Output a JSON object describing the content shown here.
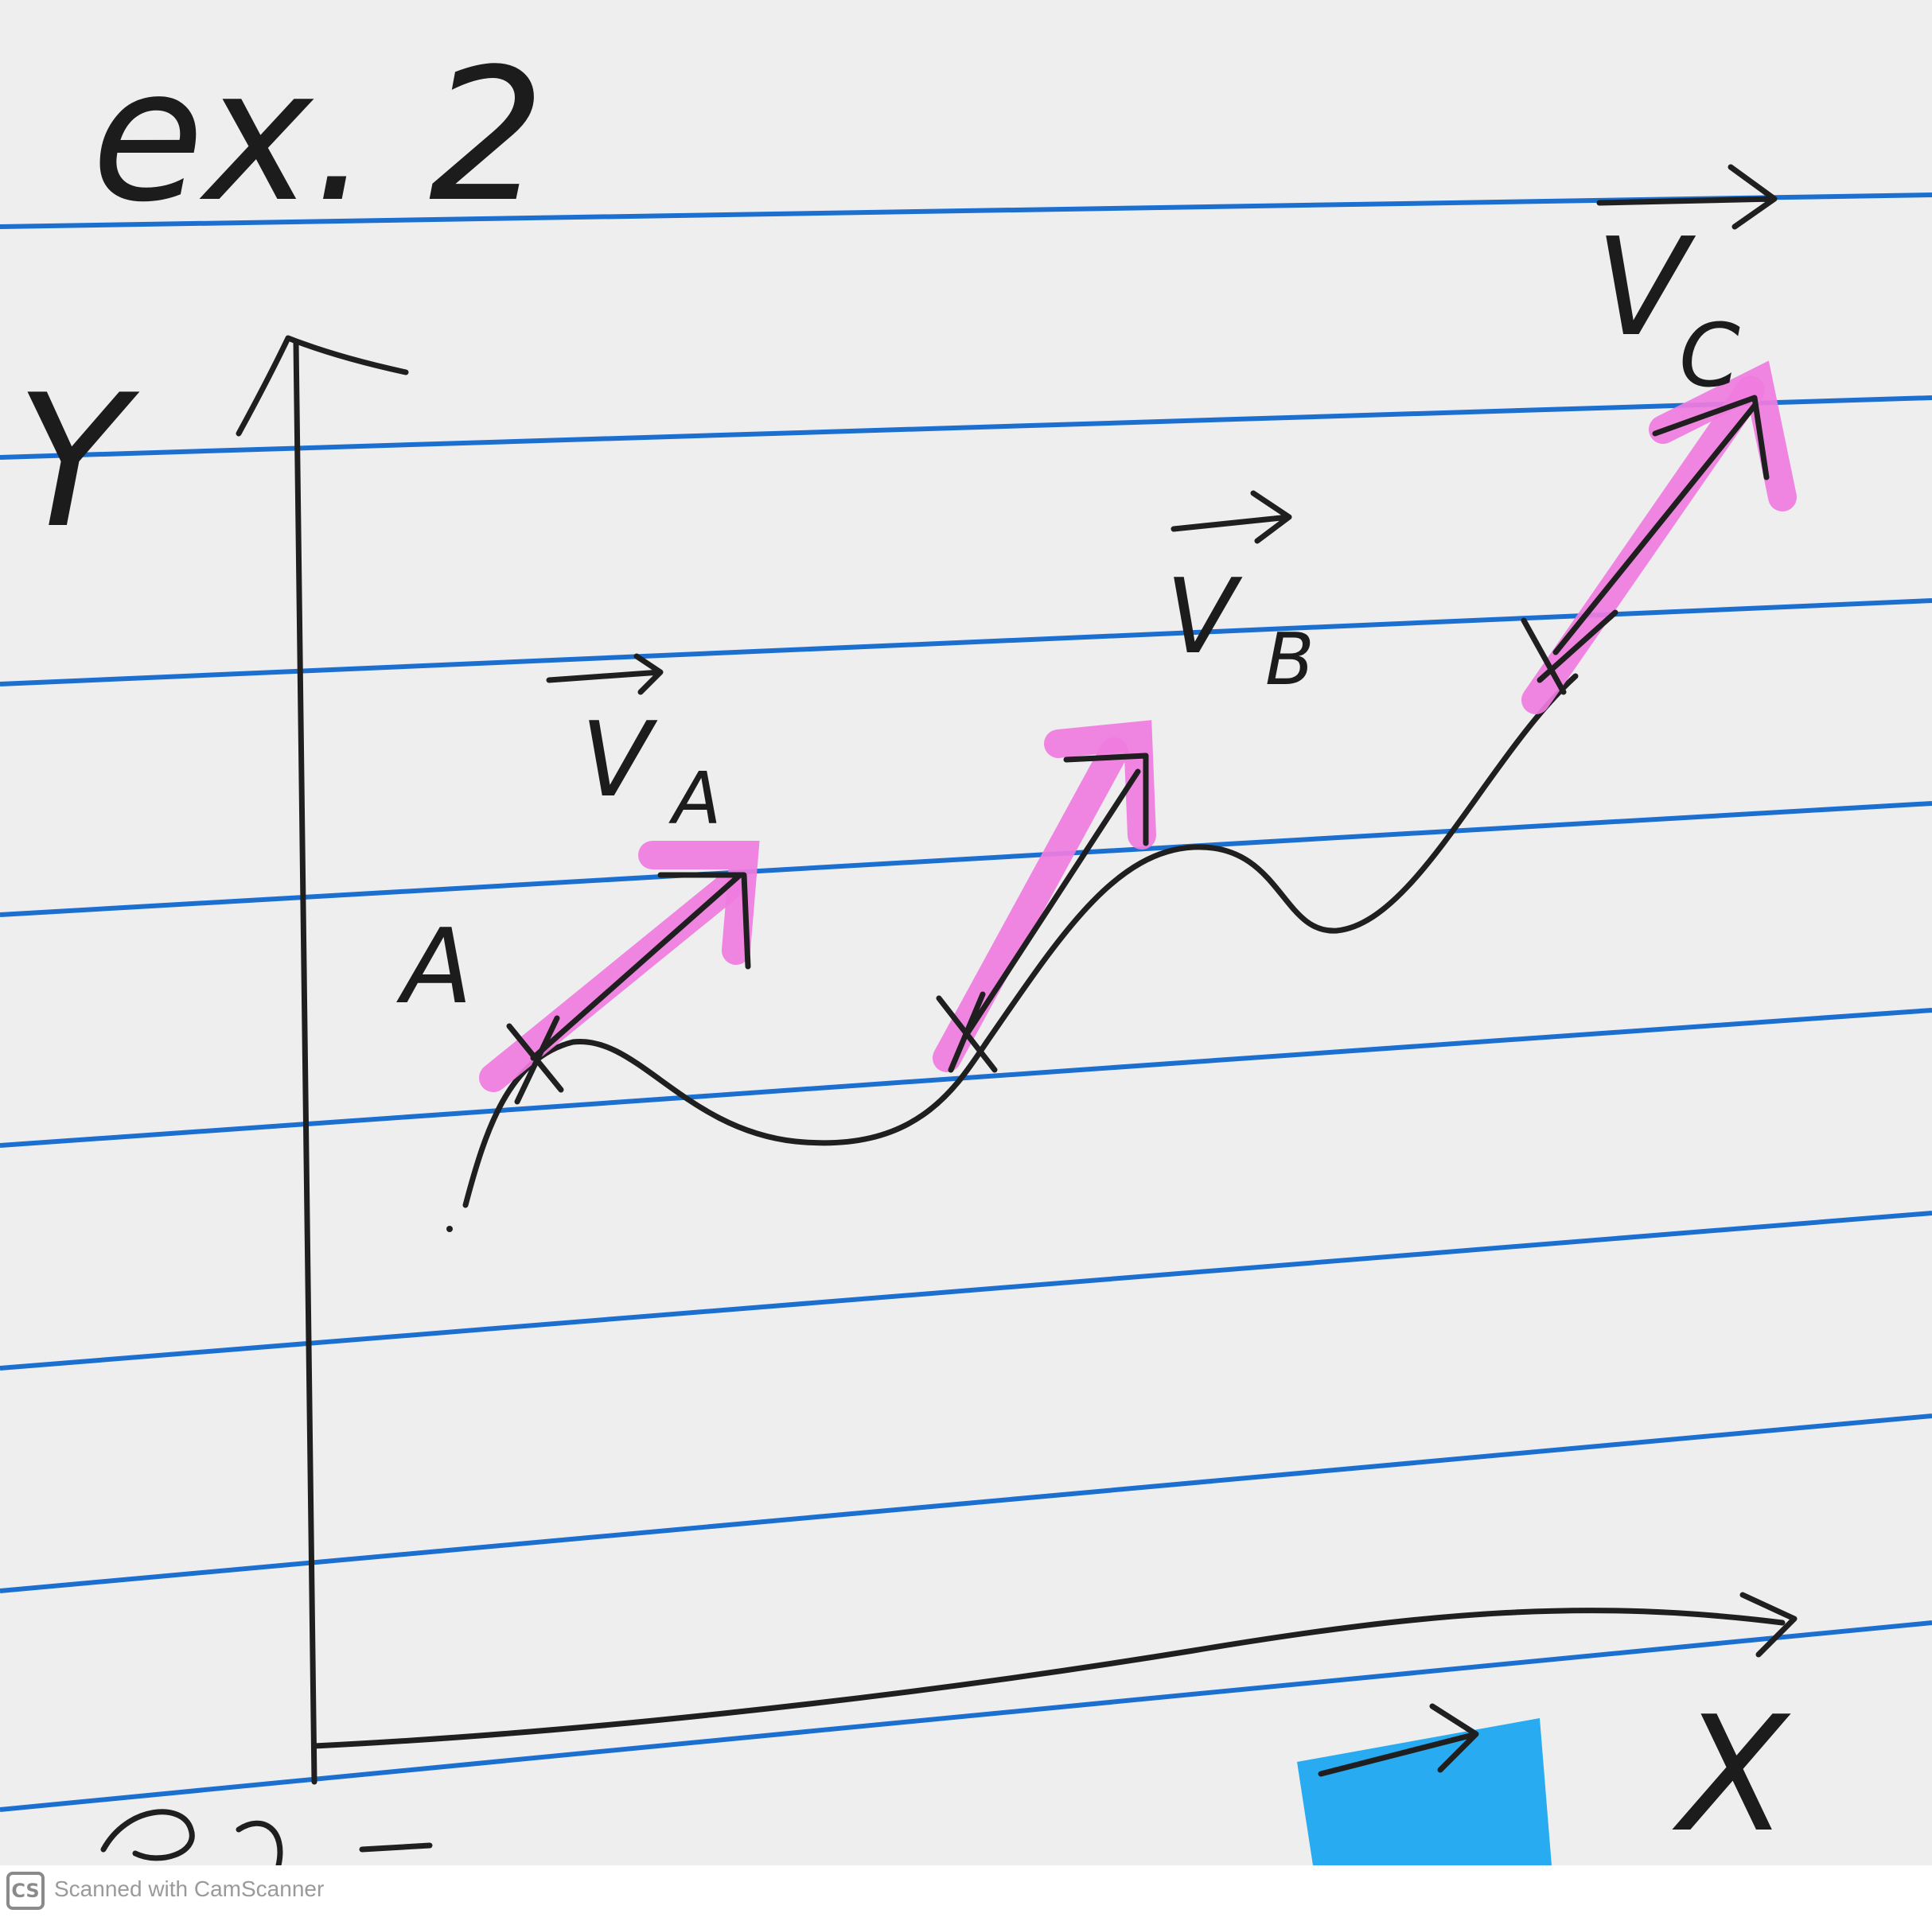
{
  "heading": "ex. 2",
  "axes": {
    "y_label": "Y",
    "x_label": "X"
  },
  "point_labels": {
    "a": "A"
  },
  "vectors": {
    "va_label": "V",
    "va_sub": "A",
    "vb_label": "V",
    "vb_sub": "B",
    "vc_label": "V",
    "vc_sub": "C"
  },
  "colors": {
    "ruling": "#1a6fd0",
    "highlight_pink": "#f07ce0",
    "highlight_blue": "#1ea7f0",
    "ink": "#1f1f1f"
  },
  "footer": {
    "logo": "CS",
    "text": "Scanned with CamScanner"
  }
}
